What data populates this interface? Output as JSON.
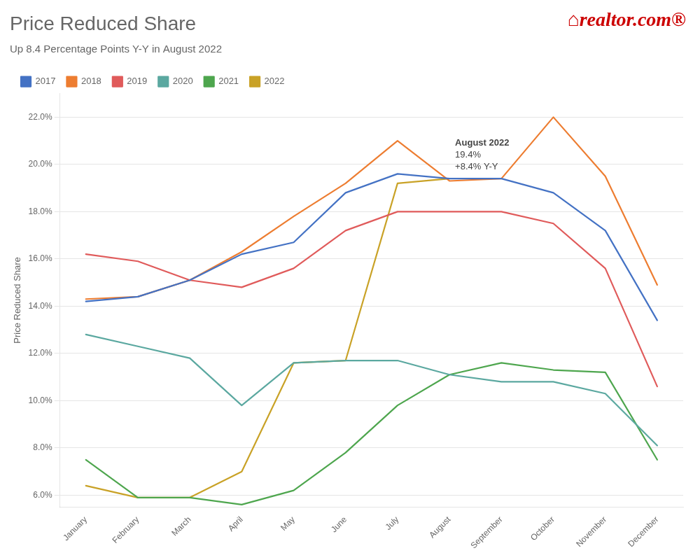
{
  "chart_data": {
    "type": "line",
    "title": "Price Reduced Share",
    "subtitle": "Up 8.4 Percentage Points Y-Y in August 2022",
    "ylabel": "Price Reduced Share",
    "categories": [
      "January",
      "February",
      "March",
      "April",
      "May",
      "June",
      "July",
      "August",
      "September",
      "October",
      "November",
      "December"
    ],
    "series": [
      {
        "name": "2017",
        "color": "#4472C4",
        "values": [
          14.2,
          14.4,
          15.1,
          16.2,
          16.7,
          18.8,
          19.6,
          19.4,
          19.4,
          18.8,
          17.2,
          13.4
        ]
      },
      {
        "name": "2018",
        "color": "#ED7D31",
        "values": [
          14.3,
          14.4,
          15.1,
          16.3,
          17.8,
          19.2,
          21.0,
          19.3,
          19.4,
          22.0,
          19.5,
          14.9
        ]
      },
      {
        "name": "2019",
        "color": "#E05B5B",
        "values": [
          16.2,
          15.9,
          15.1,
          14.8,
          15.6,
          17.2,
          18.0,
          18.0,
          18.0,
          17.5,
          15.6,
          10.6
        ]
      },
      {
        "name": "2020",
        "color": "#5BA8A0",
        "values": [
          12.8,
          12.3,
          11.8,
          9.8,
          11.6,
          11.7,
          11.7,
          11.1,
          10.8,
          10.8,
          10.3,
          8.1
        ]
      },
      {
        "name": "2021",
        "color": "#4EA64E",
        "values": [
          7.5,
          5.9,
          5.9,
          5.6,
          6.2,
          7.8,
          9.8,
          11.1,
          11.6,
          11.3,
          11.2,
          7.5
        ]
      },
      {
        "name": "2022",
        "color": "#C9A227",
        "values": [
          6.4,
          5.9,
          5.9,
          7.0,
          11.6,
          11.7,
          19.2,
          19.4,
          null,
          null,
          null,
          null
        ]
      }
    ],
    "ylim": [
      5.5,
      23.0
    ],
    "yticks": [
      {
        "value": 6.0,
        "label": "6.0%"
      },
      {
        "value": 8.0,
        "label": "8.0%"
      },
      {
        "value": 10.0,
        "label": "10.0%"
      },
      {
        "value": 12.0,
        "label": "12.0%"
      },
      {
        "value": 14.0,
        "label": "14.0%"
      },
      {
        "value": 16.0,
        "label": "16.0%"
      },
      {
        "value": 18.0,
        "label": "18.0%"
      },
      {
        "value": 20.0,
        "label": "20.0%"
      },
      {
        "value": 22.0,
        "label": "22.0%"
      }
    ],
    "grid": true,
    "legend": "upper left",
    "annotations": [
      {
        "x": "August",
        "y": 19.4,
        "text": [
          "August 2022",
          "19.4%",
          "+8.4% Y-Y"
        ]
      },
      {
        "text": "⌂realtor.com®",
        "color": "#CC0000"
      }
    ]
  }
}
